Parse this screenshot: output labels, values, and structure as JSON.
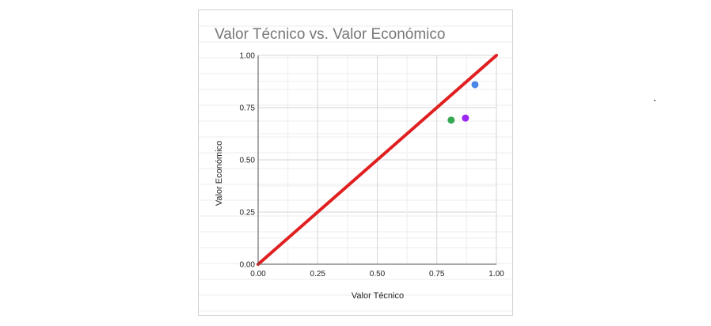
{
  "chart_data": {
    "type": "scatter",
    "title": "Valor Técnico vs. Valor Económico",
    "xlabel": "Valor Técnico",
    "ylabel": "Valor Económico",
    "xlim": [
      0,
      1
    ],
    "ylim": [
      0,
      1
    ],
    "xticks": [
      "0.00",
      "0.25",
      "0.50",
      "0.75",
      "1.00"
    ],
    "yticks": [
      "0.00",
      "0.25",
      "0.50",
      "0.75",
      "1.00"
    ],
    "grid": true,
    "legend": "none",
    "points": [
      {
        "x": 0.81,
        "y": 0.69,
        "color": "#34a853"
      },
      {
        "x": 0.87,
        "y": 0.7,
        "color": "#9c27f0"
      },
      {
        "x": 0.91,
        "y": 0.86,
        "color": "#4a86e8"
      }
    ],
    "reference_line": {
      "x": [
        0,
        1
      ],
      "y": [
        0,
        1
      ],
      "color": "#e02020"
    }
  }
}
